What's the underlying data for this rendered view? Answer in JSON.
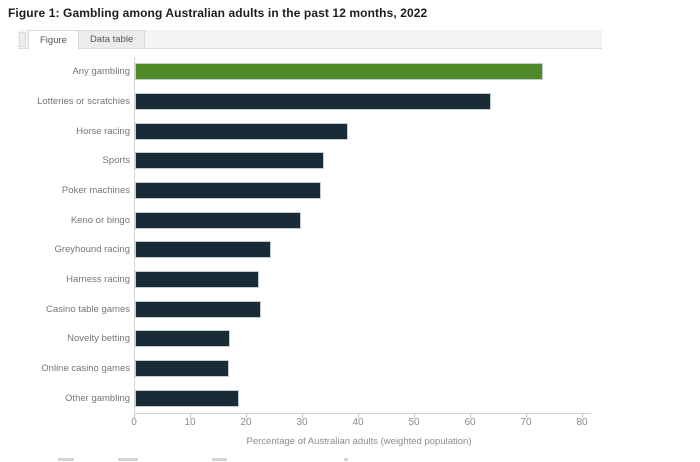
{
  "page": {
    "title": "Figure 1: Gambling among Australian adults in the past 12 months, 2022"
  },
  "tabs": [
    {
      "label": "Figure",
      "active": true
    },
    {
      "label": "Data table",
      "active": false
    }
  ],
  "chart_data": {
    "type": "bar",
    "orientation": "horizontal",
    "title": "Figure 1: Gambling among Australian adults in the past 12 months, 2022",
    "categories": [
      "Any gambling",
      "Lotteries or scratchies",
      "Horse racing",
      "Sports",
      "Poker machines",
      "Keno or bingo",
      "Greyhound racing",
      "Harness racing",
      "Casino table games",
      "Novelty betting",
      "Online casino games",
      "Other gambling"
    ],
    "values": [
      72.8,
      63.6,
      38,
      33.7,
      33.3,
      29.7,
      24.3,
      22.2,
      22.5,
      16.9,
      16.7,
      18.6
    ],
    "xlabel": "Percentage of Australian adults (weighted population)",
    "ylabel": "",
    "xlim": [
      0,
      80
    ],
    "x_ticks": [
      0,
      10,
      20,
      30,
      40,
      50,
      60,
      70,
      80
    ],
    "grid": false,
    "legend": "none",
    "bar_color": "#182b36",
    "highlight_index": 0,
    "highlight_color": "#4f8a28",
    "axis_color": "#d2d2d2"
  }
}
